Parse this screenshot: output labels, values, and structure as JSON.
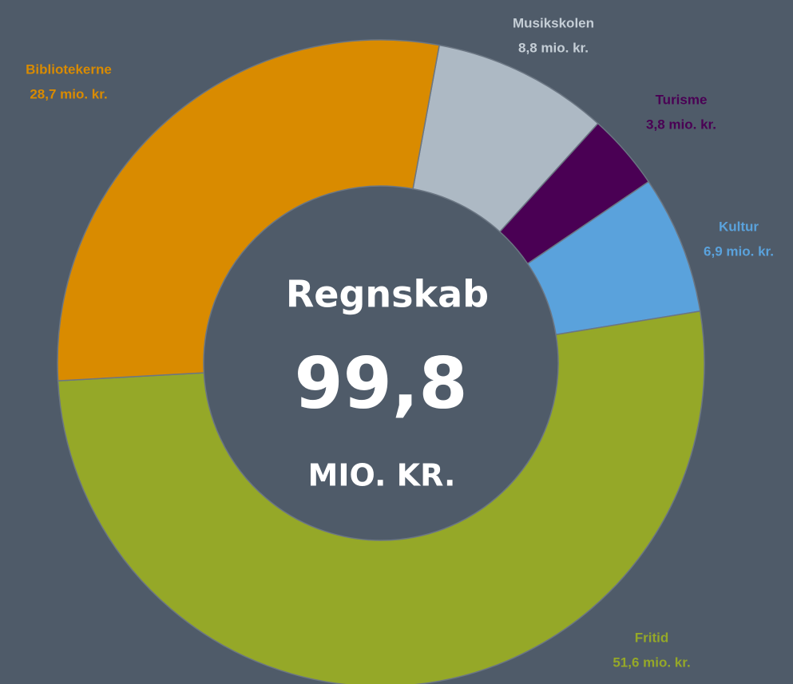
{
  "chart_data": {
    "type": "donut",
    "categories": [
      "Musikskolen",
      "Turisme",
      "Kultur",
      "Fritid",
      "Bibliotekerne"
    ],
    "values": [
      8.8,
      3.8,
      6.9,
      51.6,
      28.7
    ],
    "value_labels": [
      "8,8 mio. kr.",
      "3,8 mio. kr.",
      "6,9 mio. kr.",
      "51,6 mio. kr.",
      "28,7 mio. kr."
    ],
    "colors": [
      "#adb9c4",
      "#4a0054",
      "#5aa2dc",
      "#95a828",
      "#d98b00"
    ],
    "center_title": "Regnskab",
    "center_value": "99,8",
    "center_unit": "MIO. KR."
  }
}
